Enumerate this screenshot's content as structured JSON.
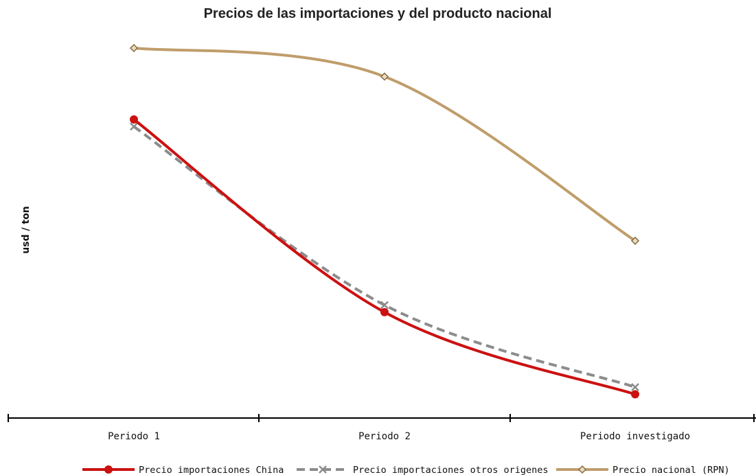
{
  "chart_data": {
    "type": "line",
    "title": "Precios de las importaciones y del producto nacional",
    "xlabel": "",
    "ylabel": "usd / ton",
    "categories": [
      "Periodo 1",
      "Periodo 2",
      "Periodo investigado"
    ],
    "y_axis_visible": false,
    "grid": false,
    "legend_position": "bottom",
    "values_note_units": "relative (no y-axis scale printed)",
    "ylim": [
      0,
      100
    ],
    "series": [
      {
        "name": "Precio importaciones China",
        "values": [
          80,
          26,
          3
        ],
        "color": "#cc1111",
        "line_style": "solid",
        "marker": "circle"
      },
      {
        "name": "Precio importaciones otros origenes",
        "values": [
          78,
          28,
          5
        ],
        "color": "#8c8c8c",
        "line_style": "dashed",
        "marker": "x"
      },
      {
        "name": "Precio nacional (RPN)",
        "values": [
          100,
          92,
          46
        ],
        "color": "#bf9d6a",
        "line_style": "solid",
        "marker": "diamond"
      }
    ]
  }
}
